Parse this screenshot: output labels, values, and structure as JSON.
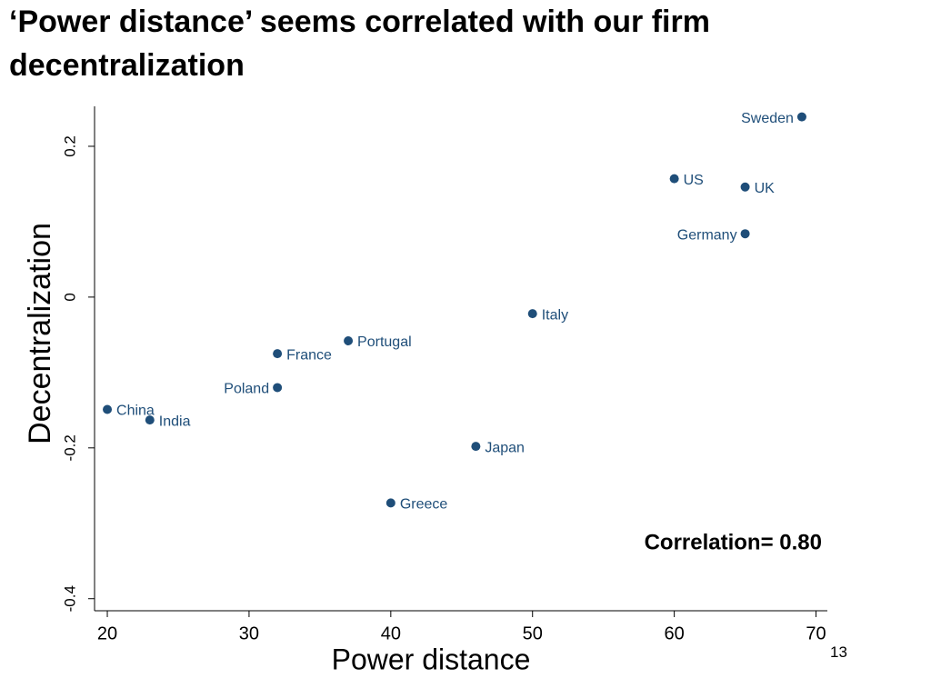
{
  "chart_data": {
    "type": "scatter",
    "title": "‘Power distance’ seems correlated with our firm decentralization",
    "x_label": "Power distance",
    "y_label": "Decentralization",
    "labels": [
      "Sweden",
      "US",
      "UK",
      "Germany",
      "Italy",
      "Portugal",
      "France",
      "Poland",
      "China",
      "India",
      "Japan",
      "Greece"
    ],
    "x": [
      69,
      60,
      65,
      65,
      50,
      37,
      32,
      32,
      20,
      23,
      46,
      40
    ],
    "values": [
      0.239,
      0.157,
      0.146,
      0.084,
      -0.022,
      -0.058,
      -0.075,
      -0.12,
      -0.149,
      -0.163,
      -0.198,
      -0.273
    ],
    "color": "#1f4e79",
    "xlim": [
      19.1,
      70.8
    ],
    "xticks": [
      20,
      30,
      40,
      50,
      60,
      70
    ],
    "ylim": [
      -0.416,
      0.253
    ],
    "yticks": [
      -0.4,
      -0.2,
      0,
      0.2
    ],
    "annotation": "Correlation= 0.80"
  },
  "page_number": 13
}
